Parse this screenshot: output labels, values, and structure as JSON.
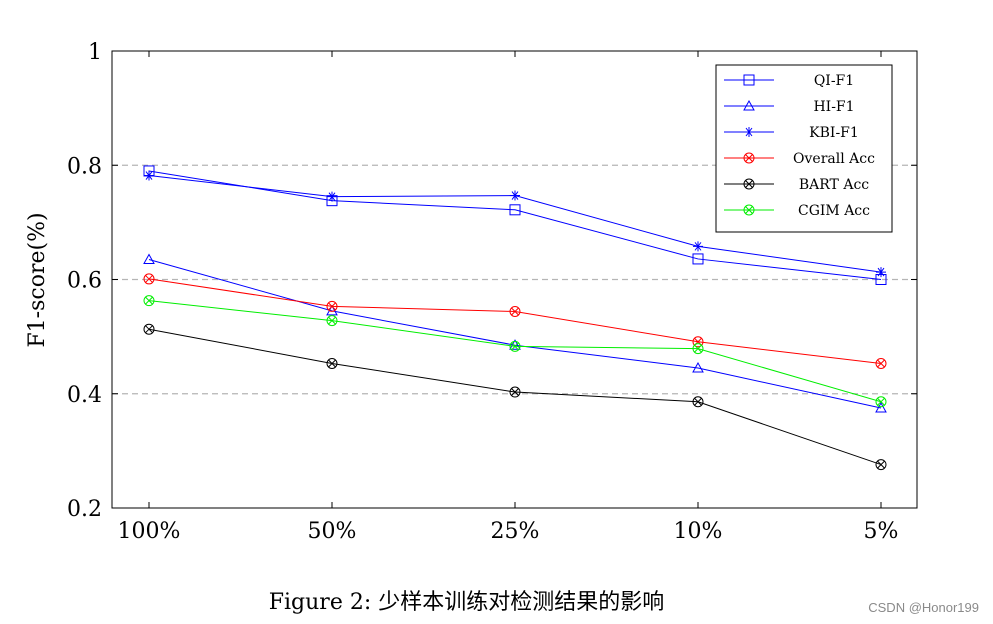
{
  "chart_data": {
    "type": "line",
    "categories": [
      "100%",
      "50%",
      "25%",
      "10%",
      "5%"
    ],
    "ylabel": "F1-score(%)",
    "xlabel": "",
    "ylim": [
      0.2,
      1.0
    ],
    "yticks": [
      0.2,
      0.4,
      0.6,
      0.8,
      1.0
    ],
    "ytick_labels": [
      "0.2",
      "0.4",
      "0.6",
      "0.8",
      "1"
    ],
    "grid": "horizontal dashed at 0.4, 0.6, 0.8",
    "legend_position": "top-right",
    "series": [
      {
        "name": "QI-F1",
        "values": [
          0.79,
          0.738,
          0.722,
          0.636,
          0.6
        ],
        "color": "#0000ff",
        "marker": "square"
      },
      {
        "name": "HI-F1",
        "values": [
          0.635,
          0.545,
          0.485,
          0.445,
          0.375
        ],
        "color": "#0000ff",
        "marker": "triangle"
      },
      {
        "name": "KBI-F1",
        "values": [
          0.782,
          0.745,
          0.747,
          0.658,
          0.613
        ],
        "color": "#0000ff",
        "marker": "star"
      },
      {
        "name": "Overall Acc",
        "values": [
          0.601,
          0.553,
          0.544,
          0.491,
          0.453
        ],
        "color": "#ff0000",
        "marker": "circle-x"
      },
      {
        "name": "BART Acc",
        "values": [
          0.513,
          0.453,
          0.403,
          0.386,
          0.276
        ],
        "color": "#000000",
        "marker": "circle-x"
      },
      {
        "name": "CGIM Acc",
        "values": [
          0.563,
          0.528,
          0.483,
          0.479,
          0.386
        ],
        "color": "#00ee00",
        "marker": "circle-x"
      }
    ]
  },
  "caption": "Figure 2: 少样本训练对检测结果的影响",
  "watermark": "CSDN @Honor199"
}
